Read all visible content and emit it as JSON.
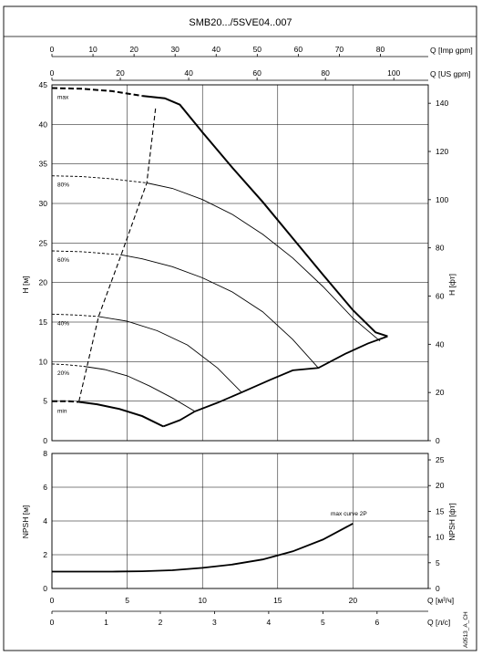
{
  "chart_data": {
    "type": "line",
    "title": "SMB20.../5SVE04..007",
    "code": "A0513_A_CH",
    "head_chart": {
      "ylabel_left": "H [м]",
      "ylabel_right": "H [фт]",
      "ylim": [
        0,
        45
      ],
      "yticks": [
        0,
        5,
        10,
        15,
        20,
        25,
        30,
        35,
        40,
        45
      ],
      "yticks_right": [
        0,
        20,
        40,
        60,
        80,
        100,
        120,
        140
      ],
      "x_range_m3h": [
        0,
        25
      ],
      "top_axes": [
        {
          "label": "Q [Imp gpm]",
          "ticks": [
            0,
            10,
            20,
            30,
            40,
            50,
            60,
            70,
            80
          ]
        },
        {
          "label": "Q [US gpm]",
          "ticks": [
            0,
            20,
            40,
            60,
            80,
            100
          ]
        }
      ],
      "series": [
        {
          "name": "max",
          "dashed_x": [
            0,
            6
          ],
          "x": [
            0,
            2,
            4,
            6,
            7.5,
            8.5,
            10,
            12,
            14,
            16,
            18,
            20,
            21.5,
            22.3
          ],
          "y": [
            44.6,
            44.5,
            44.2,
            43.6,
            43.3,
            42.5,
            39,
            34.5,
            30.2,
            25.6,
            21,
            16.5,
            13.7,
            13.2
          ]
        },
        {
          "name": "80%",
          "dashed_x": [
            0,
            6.3
          ],
          "x": [
            0,
            2,
            4,
            6.3,
            8,
            10,
            12,
            14,
            16,
            18,
            20,
            21.8
          ],
          "y": [
            33.5,
            33.4,
            33.1,
            32.6,
            31.9,
            30.5,
            28.6,
            26.1,
            23.1,
            19.5,
            15.5,
            12.6
          ]
        },
        {
          "name": "60%",
          "dashed_x": [
            0,
            4.6
          ],
          "x": [
            0,
            2,
            4.6,
            6,
            8,
            10,
            12,
            14,
            16,
            17.7
          ],
          "y": [
            24,
            23.9,
            23.5,
            23,
            22,
            20.6,
            18.8,
            16.3,
            12.8,
            9.2
          ]
        },
        {
          "name": "40%",
          "dashed_x": [
            0,
            3.1
          ],
          "x": [
            0,
            1.5,
            3.1,
            5,
            7,
            9,
            11,
            12.6
          ],
          "y": [
            16,
            15.9,
            15.7,
            15.1,
            13.9,
            12.1,
            9.2,
            6.1
          ]
        },
        {
          "name": "20%",
          "dashed_x": [
            0,
            2.1
          ],
          "x": [
            0,
            1,
            2.1,
            3.5,
            5,
            6.5,
            8,
            9.5
          ],
          "y": [
            9.7,
            9.6,
            9.4,
            9,
            8.2,
            6.9,
            5.4,
            3.7
          ]
        },
        {
          "name": "min",
          "dashed_x": [
            0,
            1.8
          ],
          "x": [
            0,
            1,
            1.8,
            3,
            4.5,
            6,
            7.4
          ],
          "y": [
            5,
            5,
            4.9,
            4.6,
            4,
            3.1,
            1.8
          ]
        }
      ],
      "limit_curve": {
        "x": [
          1.8,
          3.1,
          4.6,
          6.3,
          6.9
        ],
        "y": [
          5,
          15.7,
          23.5,
          32.6,
          42.3
        ]
      },
      "envelope": {
        "x": [
          7.4,
          8.5,
          9.5,
          11,
          12.6,
          14.5,
          16,
          17.7,
          19.5,
          21,
          22.3
        ],
        "y": [
          1.8,
          2.6,
          3.7,
          4.8,
          6.1,
          7.7,
          8.9,
          9.2,
          11,
          12.3,
          13.2
        ]
      }
    },
    "npsh_chart": {
      "ylabel_left": "NPSH [м]",
      "ylabel_right": "NPSH [фт]",
      "ylim": [
        0,
        8
      ],
      "yticks": [
        0,
        2,
        4,
        6,
        8
      ],
      "yticks_right": [
        0,
        5,
        10,
        15,
        20,
        25
      ],
      "annotation": "max curve 2P",
      "x": [
        0,
        2,
        4,
        6,
        8,
        10,
        12,
        14,
        16,
        18,
        20
      ],
      "y": [
        1,
        1,
        1,
        1.02,
        1.08,
        1.22,
        1.42,
        1.72,
        2.2,
        2.9,
        3.85
      ]
    },
    "bottom_axes": [
      {
        "label": "Q [м³/ч]",
        "ticks": [
          0,
          5,
          10,
          15,
          20
        ]
      },
      {
        "label": "Q [л/с]",
        "ticks": [
          0,
          1,
          2,
          3,
          4,
          5,
          6
        ]
      }
    ]
  }
}
